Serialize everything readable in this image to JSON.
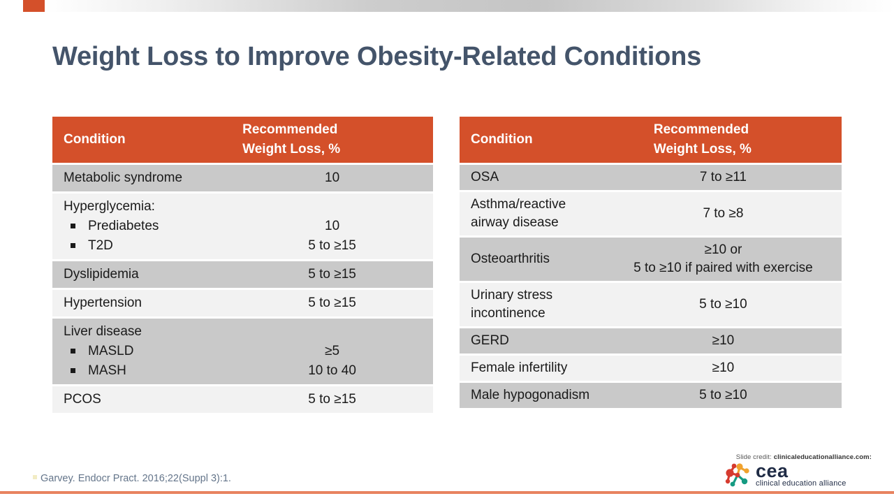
{
  "slide": {
    "title": "Weight Loss to Improve Obesity-Related Conditions",
    "citation": "Garvey. Endocr Pract. 2016;22(Suppl 3):1.",
    "credit": {
      "prefix": "Slide credit:",
      "source": "clinicaleducationalliance.com:"
    },
    "logo": {
      "abbr": "cea",
      "name": "clinical education alliance"
    }
  },
  "colors": {
    "header_bg": "#D4502A",
    "row_dark": "#C9C9C9",
    "row_light": "#F2F2F2",
    "title": "#44546A",
    "citation": "#64758A",
    "accent_bar": "#E8835F",
    "logo_navy": "#1F2B45",
    "logo_red": "#D63B2F",
    "logo_orange": "#F0A22E",
    "logo_teal": "#169B82"
  },
  "tables": [
    {
      "id": "left",
      "columns": {
        "condition": "Condition",
        "value_lines": [
          "Recommended",
          "Weight Loss, %"
        ]
      },
      "rows": [
        {
          "shade": "dark",
          "condition": [
            {
              "t": "Metabolic syndrome"
            }
          ],
          "values": [
            "10"
          ]
        },
        {
          "shade": "light",
          "condition": [
            {
              "t": "Hyperglycemia:"
            },
            {
              "t": "Prediabetes",
              "bullet": true
            },
            {
              "t": "T2D",
              "bullet": true
            }
          ],
          "values": [
            "",
            "10",
            "5 to ≥15"
          ]
        },
        {
          "shade": "dark",
          "condition": [
            {
              "t": "Dyslipidemia"
            }
          ],
          "values": [
            "5 to ≥15"
          ]
        },
        {
          "shade": "light",
          "condition": [
            {
              "t": "Hypertension"
            }
          ],
          "values": [
            "5 to ≥15"
          ]
        },
        {
          "shade": "dark",
          "condition": [
            {
              "t": "Liver disease"
            },
            {
              "t": "MASLD",
              "bullet": true
            },
            {
              "t": "MASH",
              "bullet": true
            }
          ],
          "values": [
            "",
            "≥5",
            "10 to 40"
          ]
        },
        {
          "shade": "light",
          "condition": [
            {
              "t": "PCOS"
            }
          ],
          "values": [
            "5 to ≥15"
          ]
        }
      ]
    },
    {
      "id": "right",
      "columns": {
        "condition": "Condition",
        "value_lines": [
          "Recommended",
          "Weight Loss, %"
        ]
      },
      "rows": [
        {
          "shade": "dark",
          "condition": [
            {
              "t": "OSA"
            }
          ],
          "values": [
            "7 to ≥11"
          ]
        },
        {
          "shade": "light",
          "condition": [
            {
              "t": "Asthma/reactive"
            },
            {
              "t": "airway disease"
            }
          ],
          "values": [
            "7 to ≥8"
          ]
        },
        {
          "shade": "dark",
          "condition": [
            {
              "t": "Osteoarthritis"
            }
          ],
          "values": [
            "≥10 or",
            "5 to ≥10 if paired with exercise"
          ]
        },
        {
          "shade": "light",
          "condition": [
            {
              "t": "Urinary stress"
            },
            {
              "t": "incontinence"
            }
          ],
          "values": [
            "5 to ≥10"
          ]
        },
        {
          "shade": "dark",
          "condition": [
            {
              "t": "GERD"
            }
          ],
          "values": [
            "≥10"
          ]
        },
        {
          "shade": "light",
          "condition": [
            {
              "t": "Female infertility"
            }
          ],
          "values": [
            "≥10"
          ]
        },
        {
          "shade": "dark",
          "condition": [
            {
              "t": "Male hypogonadism"
            }
          ],
          "values": [
            "5 to ≥10"
          ]
        }
      ]
    }
  ]
}
